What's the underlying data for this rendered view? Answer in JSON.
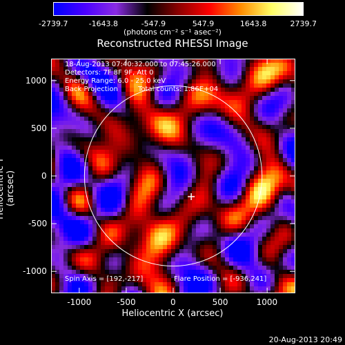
{
  "colorbar": {
    "ticks": [
      "-2739.7",
      "-1643.8",
      "-547.9",
      "547.9",
      "1643.8",
      "2739.7"
    ],
    "unit_label": "(photons cm⁻² s⁻¹ asec⁻²)",
    "colors": [
      "#0000ff",
      "#4a00ff",
      "#8a2be2",
      "#000000",
      "#8b0000",
      "#ff0000",
      "#ff8c00",
      "#ffff66",
      "#ffffff"
    ]
  },
  "chart_data": {
    "type": "heatmap",
    "title": "Reconstructed RHESSI Image",
    "xlabel": "Heliocentric X (arcsec)",
    "ylabel": "Heliocentric Y (arcsec)",
    "xlim": [
      -1300,
      1300
    ],
    "ylim": [
      -1230,
      1230
    ],
    "xticks": [
      "-1000",
      "-500",
      "0",
      "500",
      "1000"
    ],
    "yticks": [
      "1000",
      "500",
      "0",
      "-500",
      "-1000"
    ],
    "xtick_values": [
      -1000,
      -500,
      0,
      500,
      1000
    ],
    "ytick_values": [
      1000,
      500,
      0,
      -500,
      -1000
    ],
    "solar_disk_radius": 945,
    "crosshair": [
      192,
      -217
    ],
    "value_range": [
      -2739.7,
      2739.7
    ],
    "info_lines": [
      "18-Aug-2013 07:40:32.000 to 07:45:26.000",
      "Detectors: 7F 8F 9F, Att 0",
      "Energy Range: 6.0 - 25.0 keV"
    ],
    "method": "Back Projection",
    "total_counts": "Total counts: 1.86E+04",
    "spin_axis": "Spin Axis = [192,-217]",
    "flare_position": "Flare Position = [-936,241]"
  },
  "footer": {
    "timestamp": "20-Aug-2013 20:49"
  }
}
